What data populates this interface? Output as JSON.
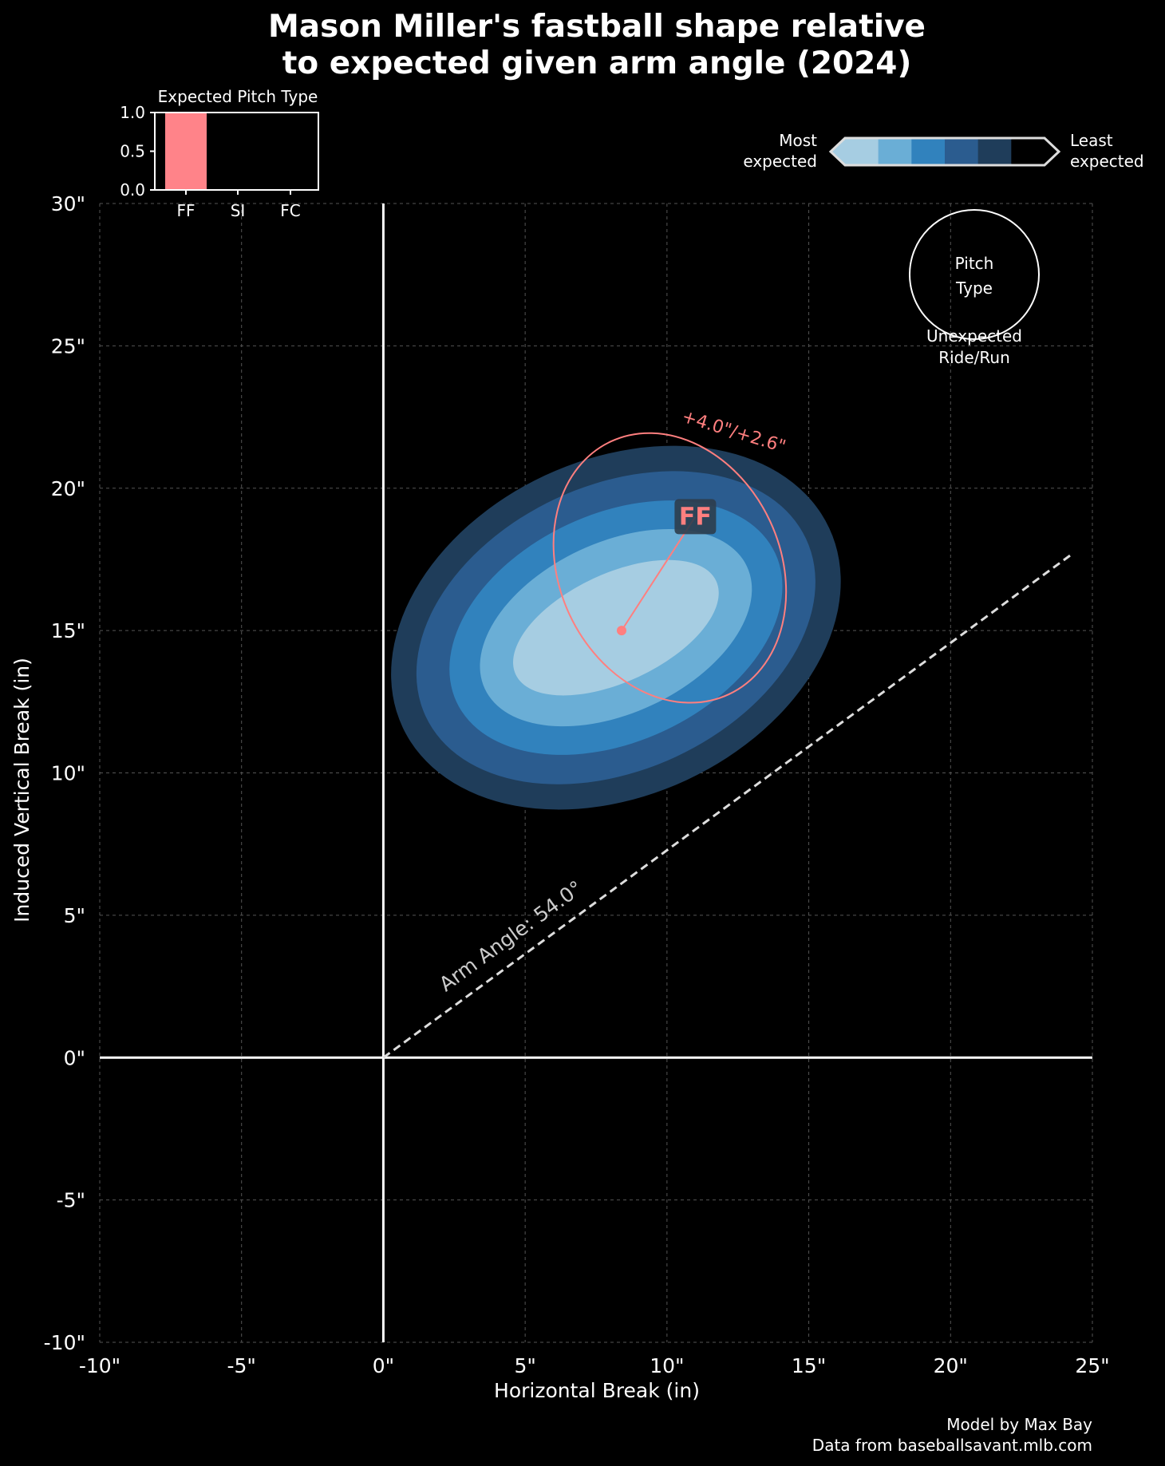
{
  "chart_data": {
    "type": "scatter",
    "title_line1": "Mason Miller's fastball shape relative",
    "title_line2": "to expected given arm angle (2024)",
    "xlabel": "Horizontal Break (in)",
    "ylabel": "Induced Vertical Break (in)",
    "xlim": [
      -10,
      25
    ],
    "ylim": [
      -10,
      30
    ],
    "x_ticks": [
      -10,
      -5,
      0,
      5,
      10,
      15,
      20,
      25
    ],
    "y_ticks": [
      -10,
      -5,
      0,
      5,
      10,
      15,
      20,
      25,
      30
    ],
    "x_tick_labels": [
      "-10\"",
      "-5\"",
      "0\"",
      "5\"",
      "10\"",
      "15\"",
      "20\"",
      "25\""
    ],
    "y_tick_labels": [
      "-10\"",
      "-5\"",
      "0\"",
      "5\"",
      "10\"",
      "15\"",
      "20\"",
      "25\"",
      "30\""
    ],
    "grid": true,
    "arm_angle": {
      "label": "Arm Angle: 54.0°",
      "degrees": 54.0,
      "end": [
        24.3,
        17.7
      ]
    },
    "expected_location": {
      "x": 8.4,
      "y": 15.0
    },
    "expected_contours": {
      "center": [
        8.2,
        15.1
      ],
      "rotation_deg": 25,
      "levels": [
        {
          "rx": 3.9,
          "ry": 1.9,
          "color": "#a6cde2"
        },
        {
          "rx": 5.1,
          "ry": 3.0,
          "color": "#6aaed6"
        },
        {
          "rx": 6.2,
          "ry": 4.0,
          "color": "#3182bd"
        },
        {
          "rx": 7.4,
          "ry": 5.0,
          "color": "#2b5c8f"
        },
        {
          "rx": 8.3,
          "ry": 5.9,
          "color": "#1f3d5a"
        }
      ]
    },
    "pitches": [
      {
        "name": "FF",
        "x": 11.0,
        "y": 19.0,
        "color": "#ff7f7f",
        "ellipse": {
          "cx": 10.1,
          "cy": 17.2,
          "rx": 3.9,
          "ry": 4.9,
          "rotation_deg": -25
        },
        "delta_label": "+4.0\"/+2.6\""
      }
    ],
    "colorbar": {
      "left_label_1": "Most",
      "left_label_2": "expected",
      "right_label_1": "Least",
      "right_label_2": "expected",
      "colors": [
        "#a6cde2",
        "#6aaed6",
        "#3182bd",
        "#2b5c8f",
        "#1f3d5a",
        "#000000"
      ]
    },
    "legend": {
      "circle_label_1": "Pitch",
      "circle_label_2": "Type",
      "caption_1": "Unexpected",
      "caption_2": "Ride/Run"
    },
    "inset": {
      "title": "Expected Pitch Type",
      "categories": [
        "FF",
        "SI",
        "FC"
      ],
      "values": [
        1.0,
        0.0,
        0.0
      ],
      "ylim": [
        0,
        1
      ],
      "y_ticks": [
        "0.0",
        "0.5",
        "1.0"
      ],
      "color": "#ff8389"
    }
  },
  "footer": {
    "line1": "Model by Max Bay",
    "line2": "Data from baseballsavant.mlb.com"
  }
}
